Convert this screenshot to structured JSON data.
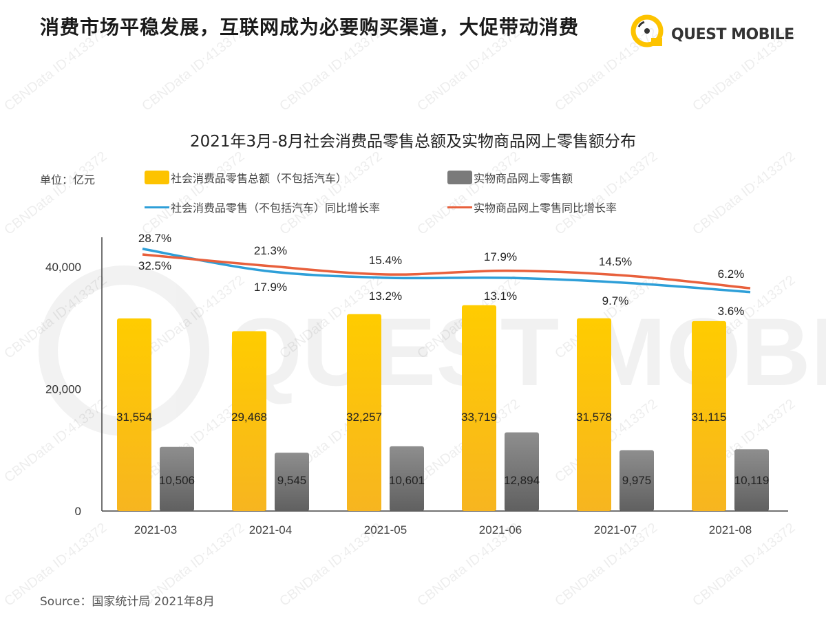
{
  "headline": "消费市场平稳发展，互联网成为必要购买渠道，大促带动消费",
  "logo": {
    "text": "QUEST MOBILE"
  },
  "watermark": "CBNData ID:413372",
  "source": "Source：国家统计局 2021年8月",
  "colors": {
    "yellow": "#FDC300",
    "gray": "#7a7a7a",
    "blue": "#2e9fd8",
    "red": "#e8603c"
  },
  "chart_data": {
    "type": "bar+line",
    "title": "2021年3月-8月社会消费品零售总额及实物商品网上零售额分布",
    "unit_label": "单位：亿元",
    "categories": [
      "2021-03",
      "2021-04",
      "2021-05",
      "2021-06",
      "2021-07",
      "2021-08"
    ],
    "y_ticks": [
      "0",
      "20,000",
      "40,000"
    ],
    "ylim": [
      0,
      40000
    ],
    "legend_placement": "top",
    "grid": false,
    "bar_series": [
      {
        "name": "社会消费品零售总额（不包括汽车）",
        "color": "#FDC300",
        "values": [
          31554,
          29468,
          32257,
          33719,
          31578,
          31115
        ],
        "labels": [
          "31,554",
          "29,468",
          "32,257",
          "33,719",
          "31,578",
          "31,115"
        ]
      },
      {
        "name": "实物商品网上零售额",
        "color": "#7a7a7a",
        "values": [
          10506,
          9545,
          10601,
          12894,
          9975,
          10119
        ],
        "labels": [
          "10,506",
          "9,545",
          "10,601",
          "12,894",
          "9,975",
          "10,119"
        ]
      }
    ],
    "line_series": [
      {
        "name": "社会消费品零售（不包括汽车）同比增长率",
        "color": "#2e9fd8",
        "values": [
          32.5,
          17.9,
          13.2,
          13.1,
          9.7,
          3.6
        ],
        "labels": [
          "32.5%",
          "17.9%",
          "13.2%",
          "13.1%",
          "9.7%",
          "3.6%"
        ]
      },
      {
        "name": "实物商品网上零售同比增长率",
        "color": "#e8603c",
        "values": [
          28.7,
          21.3,
          15.4,
          17.9,
          14.5,
          6.2
        ],
        "labels": [
          "28.7%",
          "21.3%",
          "15.4%",
          "17.9%",
          "14.5%",
          "6.2%"
        ]
      }
    ]
  }
}
